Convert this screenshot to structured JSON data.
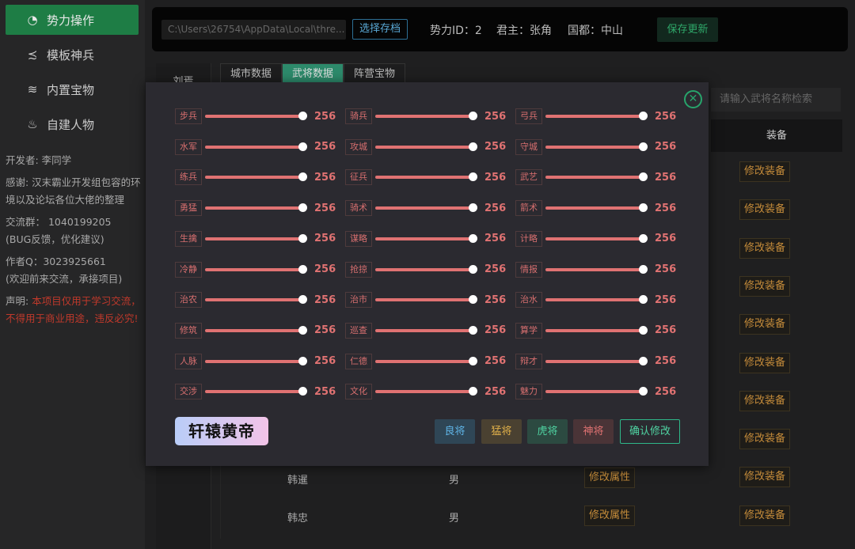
{
  "sidebar": {
    "items": [
      {
        "label": "势力操作",
        "icon": "rebel-icon",
        "glyph": "◔",
        "active": true
      },
      {
        "label": "模板神兵",
        "icon": "dragon-icon",
        "glyph": "≾",
        "active": false
      },
      {
        "label": "内置宝物",
        "icon": "layers-icon",
        "glyph": "≋",
        "active": false
      },
      {
        "label": "自建人物",
        "icon": "jedi-icon",
        "glyph": "♨",
        "active": false
      }
    ],
    "developer": "开发者: 李同学",
    "thanks": "感谢: 汉末霸业开发组包容的环境以及论坛各位大佬的整理",
    "group": "交流群： 1040199205",
    "group_note": "(BUG反馈，优化建议)",
    "author": "作者Q：3023925661",
    "author_note": "(欢迎前来交流，承接项目)",
    "disclaimer_label": "声明: ",
    "disclaimer": "本项目仅用于学习交流，不得用于商业用途，违反必究!"
  },
  "topbar": {
    "path": "C:\\Users\\26754\\AppData\\Local\\thre...",
    "select_label": "选择存档",
    "faction_id": "势力ID：2",
    "ruler": "君主：张角",
    "capital": "国都：中山",
    "save_label": "保存更新"
  },
  "side_name": "刘焉",
  "tabs": [
    "城市数据",
    "武将数据",
    "阵营宝物"
  ],
  "search": {
    "placeholder": "请输入武将名称检索"
  },
  "table": {
    "equip_header": "装备",
    "equip_button": "修改装备",
    "attr_button": "修改属性",
    "rows": [
      {
        "name": "韩暹",
        "gender": "男"
      },
      {
        "name": "韩忠",
        "gender": "男"
      }
    ]
  },
  "modal": {
    "close_icon": "close-circle-icon",
    "max": 256,
    "stats": [
      [
        "步兵",
        "骑兵",
        "弓兵"
      ],
      [
        "水军",
        "攻城",
        "守城"
      ],
      [
        "练兵",
        "征兵",
        "武艺"
      ],
      [
        "勇猛",
        "骑术",
        "箭术"
      ],
      [
        "生擒",
        "谋略",
        "计略"
      ],
      [
        "冷静",
        "抢掠",
        "情报"
      ],
      [
        "治农",
        "治市",
        "治水"
      ],
      [
        "修筑",
        "巡查",
        "算学"
      ],
      [
        "人脉",
        "仁德",
        "辩才"
      ],
      [
        "交涉",
        "文化",
        "魅力"
      ]
    ],
    "value": 256,
    "emperor": "轩辕黄帝",
    "presets": [
      {
        "label": "良将",
        "bg": "#2f4656",
        "fg": "#5fb4e6"
      },
      {
        "label": "猛将",
        "bg": "#4a4131",
        "fg": "#e0b04a"
      },
      {
        "label": "虎将",
        "bg": "#2c4a41",
        "fg": "#4fd3a2"
      },
      {
        "label": "神将",
        "bg": "#4a3437",
        "fg": "#e07272"
      }
    ],
    "confirm_label": "确认修改"
  }
}
